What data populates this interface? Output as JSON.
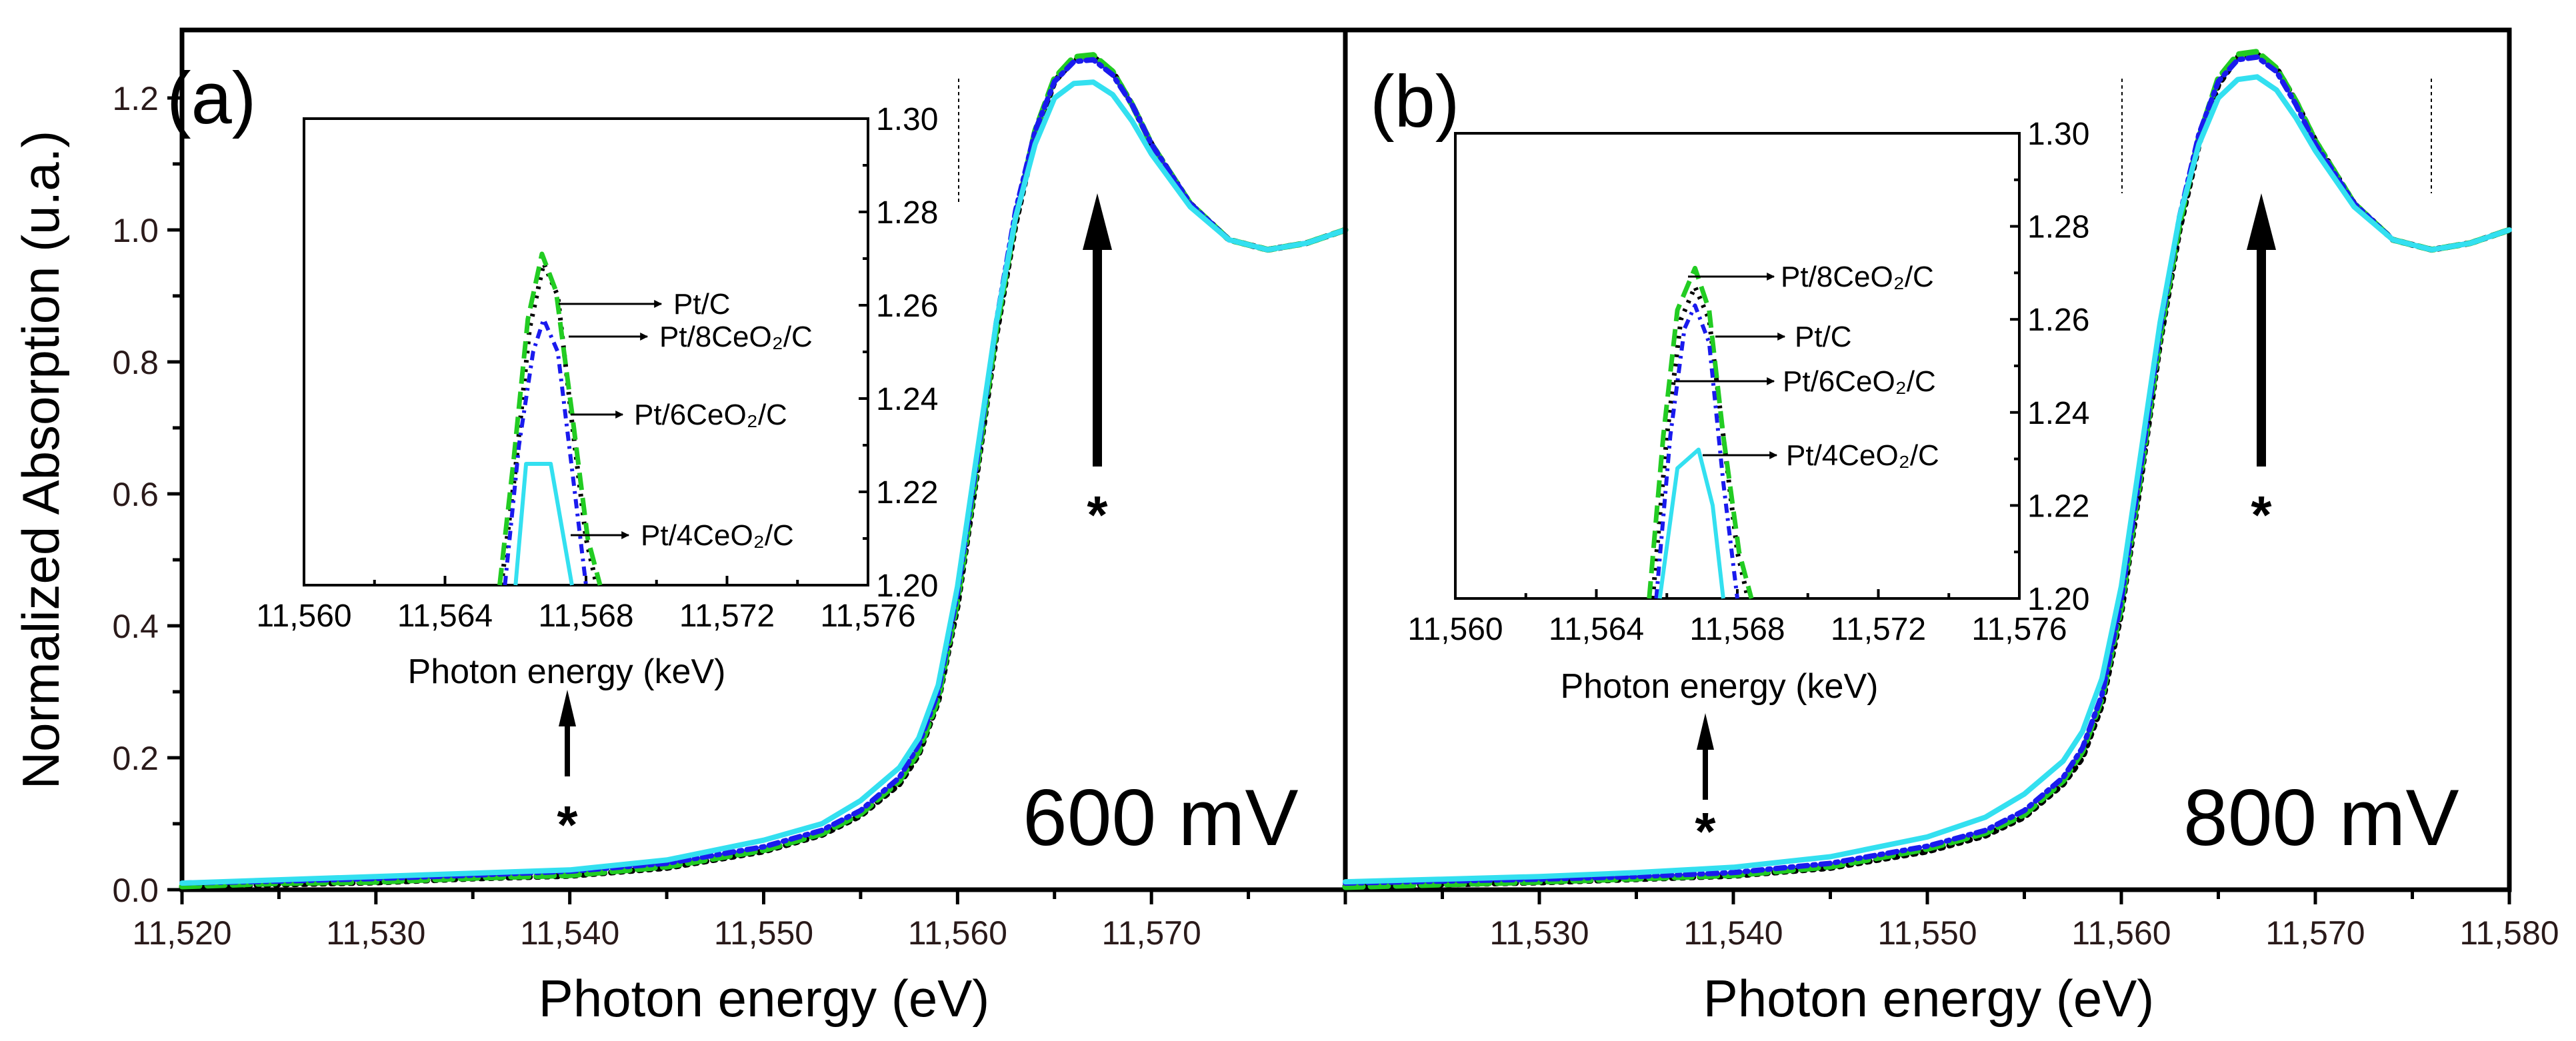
{
  "chart_data": [
    {
      "type": "line",
      "panel_label": "(a)",
      "annotation": "600 mV",
      "xlabel": "Photon energy (eV)",
      "ylabel": "Normalized Absorption (u.a.)",
      "xlim": [
        11520,
        11580
      ],
      "ylim": [
        0,
        1.303
      ],
      "xticks": [
        "11,520",
        "11,530",
        "11,540",
        "11,550",
        "11,560",
        "11,570"
      ],
      "xtick_values": [
        11520,
        11530,
        11540,
        11550,
        11560,
        11570
      ],
      "yticks": [
        "0.0",
        "0.2",
        "0.4",
        "0.6",
        "0.8",
        "1.0",
        "1.2"
      ],
      "ytick_values": [
        0,
        0.2,
        0.4,
        0.6,
        0.8,
        1.0,
        1.2
      ],
      "x": [
        11520,
        11525,
        11530,
        11535,
        11540,
        11545,
        11550,
        11553,
        11555,
        11557,
        11558,
        11559,
        11560,
        11561,
        11562,
        11563,
        11564,
        11565,
        11566,
        11567,
        11568,
        11569,
        11570,
        11572,
        11574,
        11576,
        11578,
        11580
      ],
      "series": [
        {
          "name": "Pt/C",
          "color": "#000000",
          "style": "dot",
          "values": [
            0.004,
            0.008,
            0.011,
            0.017,
            0.021,
            0.033,
            0.058,
            0.083,
            0.112,
            0.16,
            0.205,
            0.285,
            0.43,
            0.63,
            0.84,
            1.01,
            1.14,
            1.225,
            1.258,
            1.262,
            1.24,
            1.19,
            1.13,
            1.04,
            0.985,
            0.97,
            0.98,
            1.0
          ]
        },
        {
          "name": "Pt/8CeO2/C",
          "color": "#22cc22",
          "style": "dash",
          "values": [
            0.005,
            0.01,
            0.012,
            0.018,
            0.022,
            0.035,
            0.06,
            0.085,
            0.115,
            0.165,
            0.21,
            0.29,
            0.44,
            0.64,
            0.85,
            1.02,
            1.15,
            1.23,
            1.262,
            1.265,
            1.24,
            1.19,
            1.13,
            1.04,
            0.985,
            0.97,
            0.98,
            1.0
          ]
        },
        {
          "name": "Pt/6CeO2/C",
          "color": "#1a1aee",
          "style": "dashdot",
          "values": [
            0.01,
            0.013,
            0.017,
            0.022,
            0.028,
            0.04,
            0.065,
            0.09,
            0.12,
            0.17,
            0.22,
            0.3,
            0.45,
            0.65,
            0.86,
            1.03,
            1.15,
            1.225,
            1.255,
            1.258,
            1.235,
            1.19,
            1.13,
            1.04,
            0.985,
            0.97,
            0.98,
            1.0
          ]
        },
        {
          "name": "Pt/4CeO2/C",
          "color": "#33e0f0",
          "style": "solid",
          "values": [
            0.01,
            0.015,
            0.02,
            0.025,
            0.03,
            0.045,
            0.075,
            0.1,
            0.135,
            0.185,
            0.23,
            0.31,
            0.46,
            0.66,
            0.86,
            1.02,
            1.13,
            1.2,
            1.222,
            1.224,
            1.205,
            1.165,
            1.115,
            1.035,
            0.985,
            0.97,
            0.98,
            1.0
          ]
        }
      ],
      "inset": {
        "xlabel": "Photon energy (keV)",
        "xlim": [
          11560,
          11576
        ],
        "ylim": [
          1.2,
          1.3
        ],
        "xticks": [
          "11,560",
          "11,564",
          "11,568",
          "11,572",
          "11,576"
        ],
        "xtick_values": [
          11560,
          11564,
          11568,
          11572,
          11576
        ],
        "yticks": [
          "1.20",
          "1.22",
          "1.24",
          "1.26",
          "1.28",
          "1.30"
        ],
        "ytick_values": [
          1.2,
          1.22,
          1.24,
          1.26,
          1.28,
          1.3
        ],
        "series": [
          {
            "name": "Pt/C",
            "color": "#000000",
            "style": "dot",
            "points": [
              [
                11565.6,
                1.2
              ],
              [
                11566.0,
                1.225
              ],
              [
                11566.4,
                1.255
              ],
              [
                11566.8,
                1.269
              ],
              [
                11567.2,
                1.262
              ],
              [
                11567.6,
                1.235
              ],
              [
                11568.0,
                1.21
              ],
              [
                11568.3,
                1.2
              ]
            ]
          },
          {
            "name": "Pt/8CeO2/C",
            "color": "#22cc22",
            "style": "dash",
            "points": [
              [
                11565.55,
                1.2
              ],
              [
                11565.95,
                1.227
              ],
              [
                11566.35,
                1.257
              ],
              [
                11566.75,
                1.271
              ],
              [
                11567.15,
                1.263
              ],
              [
                11567.6,
                1.237
              ],
              [
                11568.05,
                1.21
              ],
              [
                11568.4,
                1.2
              ]
            ]
          },
          {
            "name": "Pt/6CeO2/C",
            "color": "#1a1aee",
            "style": "dashdot",
            "points": [
              [
                11565.7,
                1.2
              ],
              [
                11566.1,
                1.23
              ],
              [
                11566.5,
                1.25
              ],
              [
                11566.8,
                1.257
              ],
              [
                11567.2,
                1.25
              ],
              [
                11567.6,
                1.225
              ],
              [
                11568.0,
                1.2
              ]
            ]
          },
          {
            "name": "Pt/4CeO2/C",
            "color": "#33e0f0",
            "style": "solid",
            "points": [
              [
                11566.0,
                1.2
              ],
              [
                11566.3,
                1.226
              ],
              [
                11567.0,
                1.226
              ],
              [
                11567.6,
                1.2
              ]
            ]
          }
        ],
        "labels": [
          "Pt/C",
          "Pt/8CeO₂/C",
          "Pt/6CeO₂/C",
          "Pt/4CeO₂/C"
        ]
      },
      "markers": [
        "*",
        "*"
      ]
    },
    {
      "type": "line",
      "panel_label": "(b)",
      "annotation": "800 mV",
      "xlabel": "Photon energy (eV)",
      "xlim": [
        11520,
        11580
      ],
      "ylim": [
        0,
        1.303
      ],
      "xticks": [
        "11,530",
        "11,540",
        "11,550",
        "11,560",
        "11,570",
        "11,580"
      ],
      "xtick_values": [
        11530,
        11540,
        11550,
        11560,
        11570,
        11580
      ],
      "x": [
        11520,
        11525,
        11530,
        11535,
        11540,
        11545,
        11550,
        11553,
        11555,
        11557,
        11558,
        11559,
        11560,
        11561,
        11562,
        11563,
        11564,
        11565,
        11566,
        11567,
        11568,
        11569,
        11570,
        11572,
        11574,
        11576,
        11578,
        11580
      ],
      "series": [
        {
          "name": "Pt/C",
          "color": "#000000",
          "style": "dot",
          "values": [
            0.005,
            0.008,
            0.011,
            0.016,
            0.021,
            0.033,
            0.058,
            0.082,
            0.11,
            0.16,
            0.2,
            0.28,
            0.42,
            0.62,
            0.83,
            1.0,
            1.13,
            1.22,
            1.262,
            1.266,
            1.245,
            1.195,
            1.135,
            1.04,
            0.985,
            0.97,
            0.98,
            1.0
          ]
        },
        {
          "name": "Pt/8CeO2/C",
          "color": "#22cc22",
          "style": "dash",
          "values": [
            0.004,
            0.008,
            0.012,
            0.017,
            0.022,
            0.035,
            0.062,
            0.086,
            0.114,
            0.165,
            0.21,
            0.29,
            0.43,
            0.63,
            0.84,
            1.01,
            1.14,
            1.23,
            1.266,
            1.27,
            1.245,
            1.195,
            1.135,
            1.04,
            0.985,
            0.97,
            0.98,
            1.0
          ]
        },
        {
          "name": "Pt/6CeO2/C",
          "color": "#1a1aee",
          "style": "dashdot",
          "values": [
            0.01,
            0.013,
            0.016,
            0.02,
            0.026,
            0.04,
            0.066,
            0.09,
            0.12,
            0.17,
            0.215,
            0.295,
            0.44,
            0.64,
            0.85,
            1.02,
            1.145,
            1.225,
            1.258,
            1.262,
            1.24,
            1.19,
            1.13,
            1.04,
            0.985,
            0.97,
            0.98,
            1.0
          ]
        },
        {
          "name": "Pt/4CeO2/C",
          "color": "#33e0f0",
          "style": "solid",
          "values": [
            0.012,
            0.016,
            0.02,
            0.026,
            0.034,
            0.05,
            0.08,
            0.11,
            0.145,
            0.195,
            0.24,
            0.32,
            0.46,
            0.66,
            0.86,
            1.02,
            1.13,
            1.2,
            1.228,
            1.232,
            1.212,
            1.17,
            1.12,
            1.035,
            0.985,
            0.97,
            0.98,
            1.0
          ]
        }
      ],
      "inset": {
        "xlabel": "Photon energy (keV)",
        "xlim": [
          11560,
          11576
        ],
        "ylim": [
          1.2,
          1.3
        ],
        "xticks": [
          "11,560",
          "11,564",
          "11,568",
          "11,572",
          "11,576"
        ],
        "xtick_values": [
          11560,
          11564,
          11568,
          11572,
          11576
        ],
        "yticks": [
          "1.20",
          "1.22",
          "1.24",
          "1.26",
          "1.28",
          "1.30"
        ],
        "ytick_values": [
          1.2,
          1.22,
          1.24,
          1.26,
          1.28,
          1.3
        ],
        "series": [
          {
            "name": "Pt/C",
            "color": "#000000",
            "style": "dot",
            "points": [
              [
                11565.6,
                1.2
              ],
              [
                11566.0,
                1.235
              ],
              [
                11566.4,
                1.26
              ],
              [
                11566.8,
                1.267
              ],
              [
                11567.2,
                1.26
              ],
              [
                11567.6,
                1.235
              ],
              [
                11568.0,
                1.21
              ],
              [
                11568.3,
                1.2
              ]
            ]
          },
          {
            "name": "Pt/8CeO2/C",
            "color": "#22cc22",
            "style": "dash",
            "points": [
              [
                11565.5,
                1.2
              ],
              [
                11565.9,
                1.235
              ],
              [
                11566.3,
                1.262
              ],
              [
                11566.8,
                1.271
              ],
              [
                11567.2,
                1.262
              ],
              [
                11567.6,
                1.235
              ],
              [
                11568.05,
                1.21
              ],
              [
                11568.4,
                1.2
              ]
            ]
          },
          {
            "name": "Pt/6CeO2/C",
            "color": "#1a1aee",
            "style": "dashdot",
            "points": [
              [
                11565.7,
                1.2
              ],
              [
                11566.1,
                1.235
              ],
              [
                11566.5,
                1.258
              ],
              [
                11566.8,
                1.263
              ],
              [
                11567.2,
                1.255
              ],
              [
                11567.6,
                1.225
              ],
              [
                11568.0,
                1.2
              ]
            ]
          },
          {
            "name": "Pt/4CeO2/C",
            "color": "#33e0f0",
            "style": "solid",
            "points": [
              [
                11565.8,
                1.2
              ],
              [
                11566.3,
                1.228
              ],
              [
                11566.9,
                1.232
              ],
              [
                11567.3,
                1.22
              ],
              [
                11567.6,
                1.2
              ]
            ]
          }
        ],
        "labels": [
          "Pt/8CeO₂/C",
          "Pt/C",
          "Pt/6CeO₂/C",
          "Pt/4CeO₂/C"
        ]
      },
      "markers": [
        "*",
        "*"
      ]
    }
  ]
}
